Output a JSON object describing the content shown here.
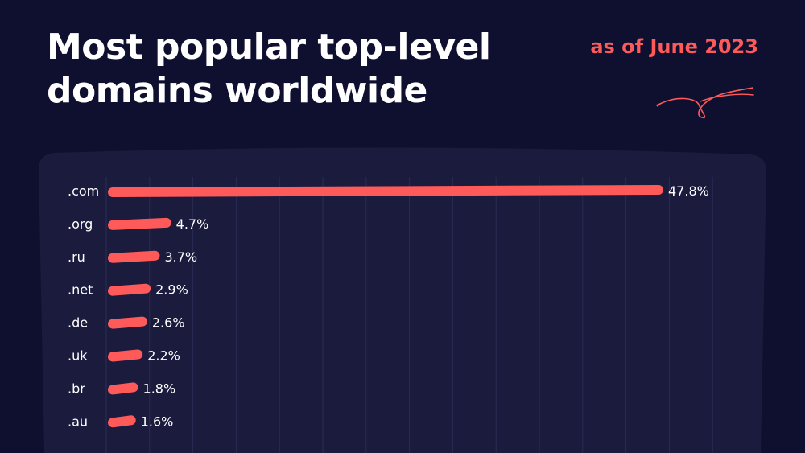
{
  "title": "Most popular top-level domains worldwide",
  "subtitle": "as of June 2023",
  "colors": {
    "background": "#0f1030",
    "panel": "#1b1c3d",
    "bar": "#ff5a5a",
    "accent": "#ff5a5a"
  },
  "chart_data": {
    "type": "bar",
    "orientation": "horizontal",
    "title": "Most popular top-level domains worldwide",
    "subtitle": "as of June 2023",
    "categories": [
      ".com",
      ".org",
      ".ru",
      ".net",
      ".de",
      ".uk",
      ".br",
      ".au"
    ],
    "values": [
      47.8,
      4.7,
      3.7,
      2.9,
      2.6,
      2.2,
      1.8,
      1.6
    ],
    "value_labels": [
      "47.8%",
      "4.7%",
      "3.7%",
      "2.9%",
      "2.6%",
      "2.2%",
      "1.8%",
      "1.6%"
    ],
    "xlim": [
      0,
      50
    ],
    "grid": true
  }
}
